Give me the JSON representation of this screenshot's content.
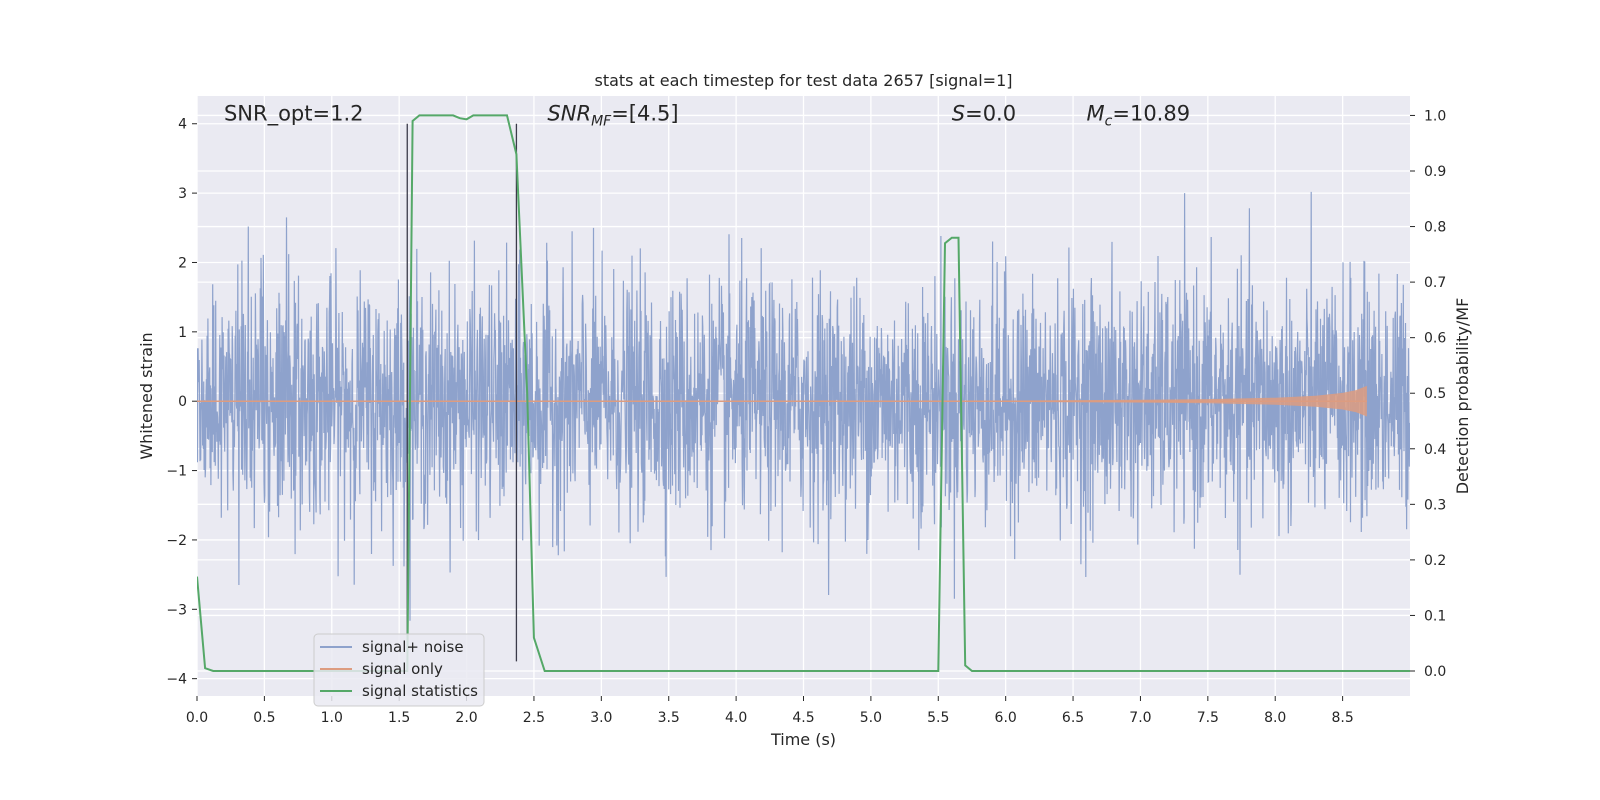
{
  "chart_data": {
    "type": "line",
    "title": "stats at each timestep for test data 2657 [signal=1]",
    "xlabel": "Time (s)",
    "ylabel": "Whitened strain",
    "ylabel_right": "Detection probability/MF",
    "xlim": [
      0.0,
      9.0
    ],
    "ylim": [
      -4.25,
      4.4
    ],
    "ylim_right": [
      -0.045,
      1.035
    ],
    "x_ticks": [
      0.0,
      0.5,
      1.0,
      1.5,
      2.0,
      2.5,
      3.0,
      3.5,
      4.0,
      4.5,
      5.0,
      5.5,
      6.0,
      6.5,
      7.0,
      7.5,
      8.0,
      8.5
    ],
    "x_tick_labels": [
      "0.0",
      "0.5",
      "1.0",
      "1.5",
      "2.0",
      "2.5",
      "3.0",
      "3.5",
      "4.0",
      "4.5",
      "5.0",
      "5.5",
      "6.0",
      "6.5",
      "7.0",
      "7.5",
      "8.0",
      "8.5"
    ],
    "y_ticks": [
      4,
      3,
      2,
      1,
      0,
      -1,
      -2,
      -3,
      -4
    ],
    "y_tick_labels": [
      "4",
      "3",
      "2",
      "1",
      "0",
      "−1",
      "−2",
      "−3",
      "−4"
    ],
    "y_right_ticks": [
      1.0,
      0.9,
      0.8,
      0.7,
      0.6,
      0.5,
      0.4,
      0.3,
      0.2,
      0.1,
      0.0
    ],
    "y_right_tick_labels": [
      "1.0",
      "0.9",
      "0.8",
      "0.7",
      "0.6",
      "0.5",
      "0.4",
      "0.3",
      "0.2",
      "0.1",
      "0.0"
    ],
    "grid": true,
    "legend_position": "lower-left",
    "annotations": [
      {
        "text": "SNR_opt=1.2",
        "x": 0.2,
        "y": 4.05
      },
      {
        "text": "SNR_MF=[4.5]",
        "x": 2.6,
        "y": 4.05
      },
      {
        "text": "S=0.0",
        "x": 5.6,
        "y": 4.05
      },
      {
        "text": "M_c=10.89",
        "x": 6.6,
        "y": 4.05
      }
    ],
    "vertical_lines": [
      {
        "x": 1.56,
        "ymin": -3.75,
        "ymax": 4.0
      },
      {
        "x": 2.37,
        "ymin": -3.75,
        "ymax": 4.0
      }
    ],
    "series": [
      {
        "name": "signal+ noise",
        "axis": "left",
        "color": "#8ea2cc",
        "sample_rate": 360,
        "envelope_p95": 1.65,
        "envelope_p50": 0.9,
        "max_abs": 4.0
      },
      {
        "name": "signal only",
        "axis": "left",
        "color": "#dd9c80",
        "x": [
          0.0,
          4.0,
          6.0,
          7.0,
          7.5,
          8.0,
          8.3,
          8.5,
          8.6,
          8.68
        ],
        "amplitude": [
          0.0,
          0.0,
          0.01,
          0.02,
          0.03,
          0.05,
          0.08,
          0.12,
          0.16,
          0.22
        ]
      },
      {
        "name": "signal statistics",
        "axis": "right",
        "color": "#55a868",
        "x": [
          0.0,
          0.06,
          0.12,
          1.5,
          1.56,
          1.6,
          1.65,
          1.7,
          1.9,
          1.95,
          2.0,
          2.05,
          2.3,
          2.37,
          2.45,
          2.5,
          2.58,
          5.5,
          5.55,
          5.6,
          5.65,
          5.7,
          5.75,
          9.0
        ],
        "y": [
          0.17,
          0.005,
          0.0,
          0.0,
          0.0,
          0.99,
          1.0,
          1.0,
          1.0,
          0.995,
          0.993,
          1.0,
          1.0,
          0.93,
          0.5,
          0.06,
          0.0,
          0.0,
          0.77,
          0.78,
          0.78,
          0.01,
          0.0,
          0.0
        ]
      }
    ]
  }
}
